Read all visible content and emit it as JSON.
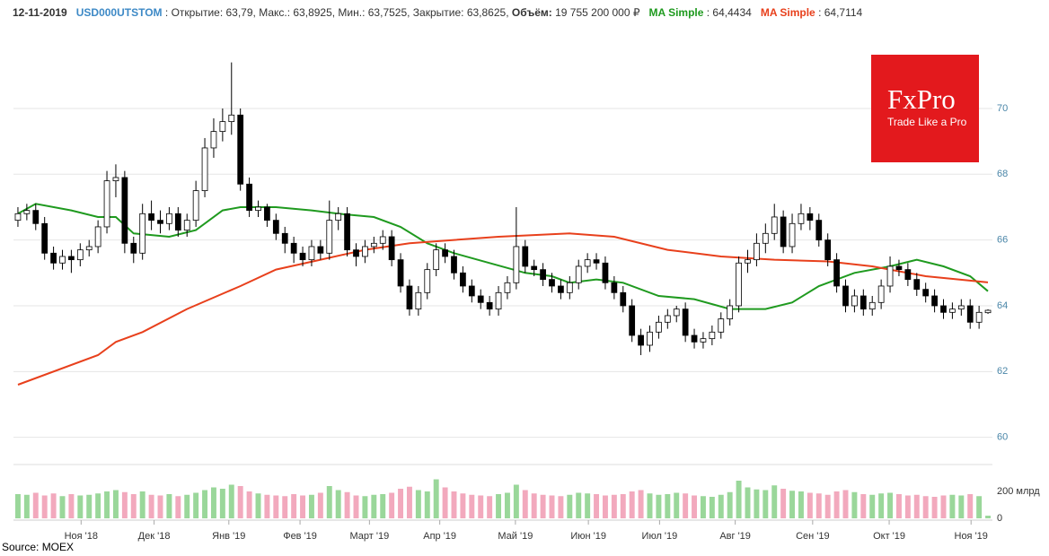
{
  "header": {
    "date": "12-11-2019",
    "ticker": "USD000UTSTOM",
    "ohlc": ": Открытие: 63,79, Макс.: 63,8925, Мин.: 63,7525, Закрытие: 63,8625,",
    "volume_label": "Объём:",
    "volume_value": "19 755 200 000 ₽",
    "ma1_value": ": 64,4434",
    "ma2_value": ": 64,7114"
  },
  "logo": {
    "title": "FxPro",
    "tagline": "Trade Like a Pro"
  },
  "source": "Source: MOEX",
  "chart_data": [
    {
      "type": "candlestick",
      "xlim": [
        -0.5,
        109.5
      ],
      "ylim": [
        59.5,
        72
      ],
      "yticks": [
        60,
        62,
        64,
        66,
        68,
        70
      ],
      "grid": true,
      "up_fill": "#ffffff",
      "down_fill": "#000000",
      "open": [
        66.6,
        66.8,
        66.9,
        66.5,
        65.6,
        65.3,
        65.5,
        65.4,
        65.7,
        65.8,
        66.4,
        67.8,
        67.9,
        65.9,
        65.6,
        66.8,
        66.6,
        66.5,
        66.8,
        66.3,
        66.6,
        67.5,
        68.8,
        69.3,
        69.6,
        69.8,
        67.7,
        66.9,
        67.0,
        66.6,
        66.2,
        65.9,
        65.6,
        65.4,
        65.8,
        65.6,
        66.6,
        66.8,
        65.7,
        65.5,
        65.8,
        65.9,
        66.1,
        65.4,
        64.6,
        63.9,
        64.4,
        65.1,
        65.7,
        65.5,
        65.0,
        64.6,
        64.3,
        64.1,
        63.9,
        64.4,
        64.7,
        65.8,
        65.2,
        65.1,
        64.8,
        64.6,
        64.4,
        64.7,
        65.2,
        65.4,
        65.3,
        64.7,
        64.4,
        64.0,
        63.1,
        62.8,
        63.2,
        63.5,
        63.7,
        63.9,
        63.1,
        62.9,
        63.0,
        63.2,
        63.6,
        64.0,
        65.3,
        65.4,
        65.9,
        66.2,
        66.7,
        65.8,
        66.5,
        66.8,
        66.6,
        66.0,
        65.4,
        64.6,
        64.0,
        64.3,
        63.9,
        64.1,
        64.6,
        65.2,
        65.1,
        64.8,
        64.5,
        64.3,
        64.0,
        63.8,
        63.9,
        64.0,
        63.5,
        63.79
      ],
      "high": [
        67.0,
        67.1,
        67.1,
        66.7,
        65.8,
        65.7,
        65.7,
        65.9,
        66.0,
        66.6,
        68.1,
        68.3,
        68.1,
        66.1,
        67.1,
        67.2,
        66.9,
        67.0,
        67.0,
        66.8,
        67.8,
        69.1,
        69.7,
        70.0,
        71.4,
        70.0,
        67.9,
        67.2,
        67.1,
        66.8,
        66.4,
        66.1,
        65.8,
        66.0,
        66.0,
        67.2,
        67.0,
        67.0,
        65.9,
        66.0,
        66.1,
        66.3,
        66.3,
        65.6,
        64.8,
        64.6,
        65.3,
        65.9,
        65.9,
        65.7,
        65.2,
        64.8,
        64.5,
        64.3,
        64.6,
        64.9,
        67.0,
        66.0,
        65.4,
        65.3,
        65.0,
        64.8,
        64.9,
        65.4,
        65.6,
        65.6,
        65.5,
        64.9,
        64.6,
        64.2,
        63.3,
        63.4,
        63.7,
        63.9,
        64.0,
        64.1,
        63.3,
        63.2,
        63.4,
        63.8,
        64.2,
        65.5,
        65.7,
        66.2,
        66.5,
        67.1,
        66.9,
        66.8,
        67.1,
        67.0,
        66.8,
        66.2,
        65.6,
        64.8,
        64.5,
        64.5,
        64.3,
        64.8,
        65.5,
        65.4,
        65.3,
        65.0,
        64.7,
        64.5,
        64.2,
        64.1,
        64.2,
        64.2,
        64.0,
        63.8925
      ],
      "low": [
        66.4,
        66.6,
        66.3,
        65.4,
        65.1,
        65.1,
        65.0,
        65.2,
        65.5,
        65.6,
        66.2,
        67.3,
        65.6,
        65.3,
        65.4,
        66.3,
        66.2,
        66.3,
        66.1,
        66.1,
        66.4,
        67.3,
        68.5,
        69.0,
        69.2,
        67.5,
        66.7,
        66.7,
        66.4,
        66.0,
        65.6,
        65.3,
        65.2,
        65.2,
        65.4,
        65.4,
        66.3,
        65.5,
        65.2,
        65.3,
        65.6,
        65.7,
        65.2,
        64.4,
        63.7,
        63.7,
        64.2,
        64.9,
        65.3,
        64.8,
        64.4,
        64.1,
        63.9,
        63.7,
        63.7,
        64.2,
        64.5,
        65.0,
        64.9,
        64.6,
        64.4,
        64.2,
        64.2,
        64.5,
        65.0,
        65.1,
        64.5,
        64.2,
        63.8,
        62.9,
        62.5,
        62.6,
        63.0,
        63.3,
        63.5,
        62.9,
        62.7,
        62.7,
        62.8,
        63.0,
        63.4,
        63.8,
        65.0,
        65.2,
        65.6,
        66.0,
        65.6,
        65.6,
        66.3,
        66.3,
        65.8,
        65.2,
        64.4,
        63.8,
        63.8,
        63.7,
        63.7,
        63.9,
        64.4,
        64.9,
        64.6,
        64.3,
        64.1,
        63.8,
        63.6,
        63.6,
        63.7,
        63.3,
        63.3,
        63.7525
      ],
      "close": [
        66.8,
        66.9,
        66.5,
        65.6,
        65.3,
        65.5,
        65.4,
        65.7,
        65.8,
        66.4,
        67.8,
        67.9,
        65.9,
        65.6,
        66.8,
        66.6,
        66.5,
        66.8,
        66.3,
        66.6,
        67.5,
        68.8,
        69.3,
        69.6,
        69.8,
        67.7,
        66.9,
        67.0,
        66.6,
        66.2,
        65.9,
        65.6,
        65.4,
        65.8,
        65.6,
        66.6,
        66.8,
        65.7,
        65.5,
        65.8,
        65.9,
        66.1,
        65.4,
        64.6,
        63.9,
        64.4,
        65.1,
        65.7,
        65.5,
        65.0,
        64.6,
        64.3,
        64.1,
        63.9,
        64.4,
        64.7,
        65.8,
        65.2,
        65.1,
        64.8,
        64.6,
        64.4,
        64.7,
        65.2,
        65.4,
        65.3,
        64.7,
        64.4,
        64.0,
        63.1,
        62.8,
        63.2,
        63.5,
        63.7,
        63.9,
        63.1,
        62.9,
        63.0,
        63.2,
        63.6,
        64.0,
        65.3,
        65.4,
        65.9,
        66.2,
        66.7,
        65.8,
        66.5,
        66.8,
        66.6,
        66.0,
        65.4,
        64.6,
        64.0,
        64.3,
        63.9,
        64.1,
        64.6,
        65.2,
        65.1,
        64.8,
        64.5,
        64.3,
        64.0,
        63.8,
        63.9,
        64.0,
        63.5,
        63.8,
        63.8625
      ],
      "series": [
        {
          "name": "MA Simple",
          "color": "#1f9a1f",
          "x": [
            0,
            2,
            6,
            9,
            11,
            13,
            17,
            20,
            23,
            25,
            29,
            33,
            36,
            40,
            43,
            46,
            49,
            53,
            57,
            60,
            62,
            65,
            68,
            72,
            76,
            80,
            84,
            87,
            90,
            94,
            98,
            101,
            104,
            107,
            109
          ],
          "values": [
            66.8,
            67.1,
            66.9,
            66.7,
            66.7,
            66.2,
            66.1,
            66.3,
            66.9,
            67.0,
            67.0,
            66.9,
            66.8,
            66.7,
            66.4,
            65.9,
            65.6,
            65.3,
            65.0,
            64.9,
            64.7,
            64.8,
            64.7,
            64.3,
            64.2,
            63.9,
            63.9,
            64.1,
            64.6,
            65.0,
            65.2,
            65.4,
            65.2,
            64.9,
            64.4434
          ]
        },
        {
          "name": "MA Simple",
          "color": "#e8401c",
          "x": [
            0,
            9,
            11,
            14,
            19,
            25,
            29,
            34,
            39,
            44,
            49,
            54,
            62,
            67,
            73,
            79,
            85,
            91,
            96,
            102,
            109
          ],
          "values": [
            61.6,
            62.5,
            62.9,
            63.2,
            63.9,
            64.6,
            65.1,
            65.4,
            65.7,
            65.9,
            66.0,
            66.1,
            66.2,
            66.1,
            65.7,
            65.5,
            65.4,
            65.35,
            65.2,
            64.9,
            64.7114
          ]
        }
      ]
    },
    {
      "type": "bar",
      "xlim": [
        -0.5,
        109.5
      ],
      "ylim": [
        0,
        400
      ],
      "yticks": [
        0,
        {
          "value": 200,
          "label": "200 млрд"
        }
      ],
      "up_color": "#9ad79a",
      "down_color": "#f2a9bd",
      "xticks": [
        {
          "value": 7.1,
          "label": "Ноя '18"
        },
        {
          "value": 15.3,
          "label": "Дек '18"
        },
        {
          "value": 23.7,
          "label": "Янв '19"
        },
        {
          "value": 31.7,
          "label": "Фев '19"
        },
        {
          "value": 39.5,
          "label": "Март '19"
        },
        {
          "value": 47.4,
          "label": "Апр '19"
        },
        {
          "value": 55.9,
          "label": "Май '19"
        },
        {
          "value": 64.1,
          "label": "Июн '19"
        },
        {
          "value": 72.1,
          "label": "Июл '19"
        },
        {
          "value": 80.6,
          "label": "Авг '19"
        },
        {
          "value": 89.3,
          "label": "Сен '19"
        },
        {
          "value": 97.9,
          "label": "Окт '19"
        },
        {
          "value": 107.1,
          "label": "Ноя '19"
        }
      ],
      "values": [
        180,
        175,
        190,
        170,
        185,
        165,
        180,
        170,
        175,
        185,
        200,
        210,
        195,
        180,
        200,
        175,
        170,
        180,
        165,
        175,
        190,
        210,
        230,
        220,
        250,
        240,
        200,
        185,
        175,
        170,
        165,
        180,
        170,
        175,
        190,
        240,
        210,
        195,
        170,
        165,
        175,
        180,
        190,
        220,
        235,
        210,
        200,
        290,
        230,
        200,
        185,
        175,
        170,
        165,
        180,
        190,
        250,
        210,
        185,
        175,
        170,
        165,
        175,
        190,
        185,
        180,
        170,
        175,
        180,
        200,
        210,
        185,
        175,
        180,
        190,
        185,
        170,
        165,
        160,
        175,
        195,
        280,
        230,
        215,
        210,
        245,
        220,
        205,
        200,
        190,
        185,
        175,
        200,
        210,
        195,
        180,
        175,
        185,
        190,
        180,
        170,
        175,
        165,
        160,
        170,
        175,
        170,
        180,
        165,
        19.7552
      ]
    }
  ]
}
